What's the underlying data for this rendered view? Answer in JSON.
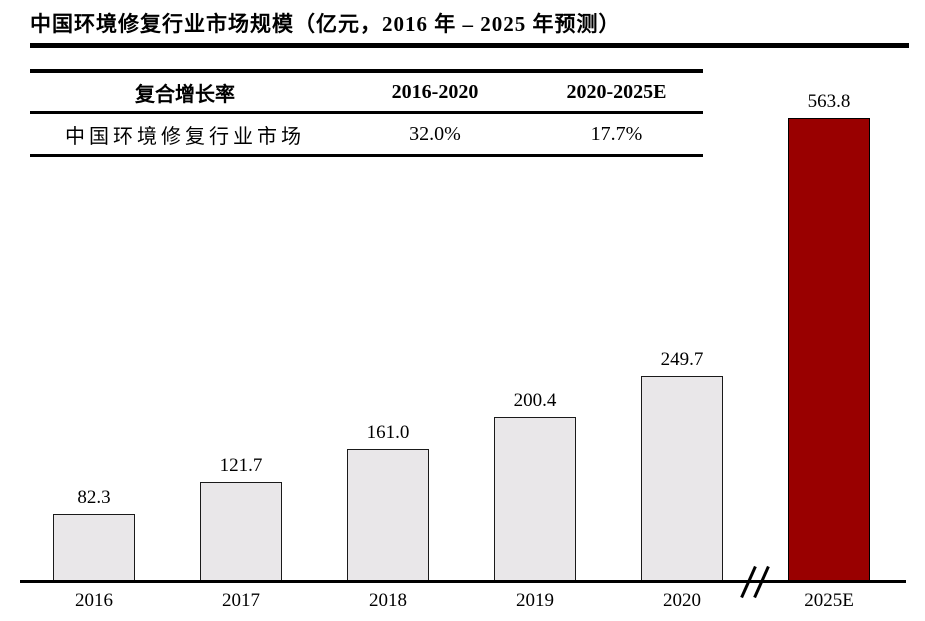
{
  "page": {
    "title": "中国环境修复行业市场规模（亿元，2016 年 – 2025 年预测）"
  },
  "growth_table": {
    "headers": [
      "复合增长率",
      "2016-2020",
      "2020-2025E"
    ],
    "rows": [
      {
        "label": "中国环境修复行业市场",
        "cagr_2016_2020": "32.0%",
        "cagr_2020_2025e": "17.7%"
      }
    ]
  },
  "chart_data": {
    "type": "bar",
    "title": "中国环境修复行业市场规模（亿元，2016 年 – 2025 年预测）",
    "categories": [
      "2016",
      "2017",
      "2018",
      "2019",
      "2020",
      "2025E"
    ],
    "values": [
      82.3,
      121.7,
      161.0,
      200.4,
      249.7,
      563.8
    ],
    "value_labels": [
      "82.3",
      "121.7",
      "161.0",
      "200.4",
      "249.7",
      "563.8"
    ],
    "highlight_category": "2025E",
    "axis_break_between": [
      "2020",
      "2025E"
    ],
    "xlabel": "",
    "ylabel": "",
    "ylim": [
      0,
      600
    ],
    "grid": false,
    "legend": false,
    "colors": {
      "bar_default": "#e9e7e9",
      "bar_border": "#1a1a1a",
      "bar_highlight": "#990000",
      "bar_highlight_border": "#000000",
      "axis": "#000000",
      "text": "#000000"
    }
  }
}
